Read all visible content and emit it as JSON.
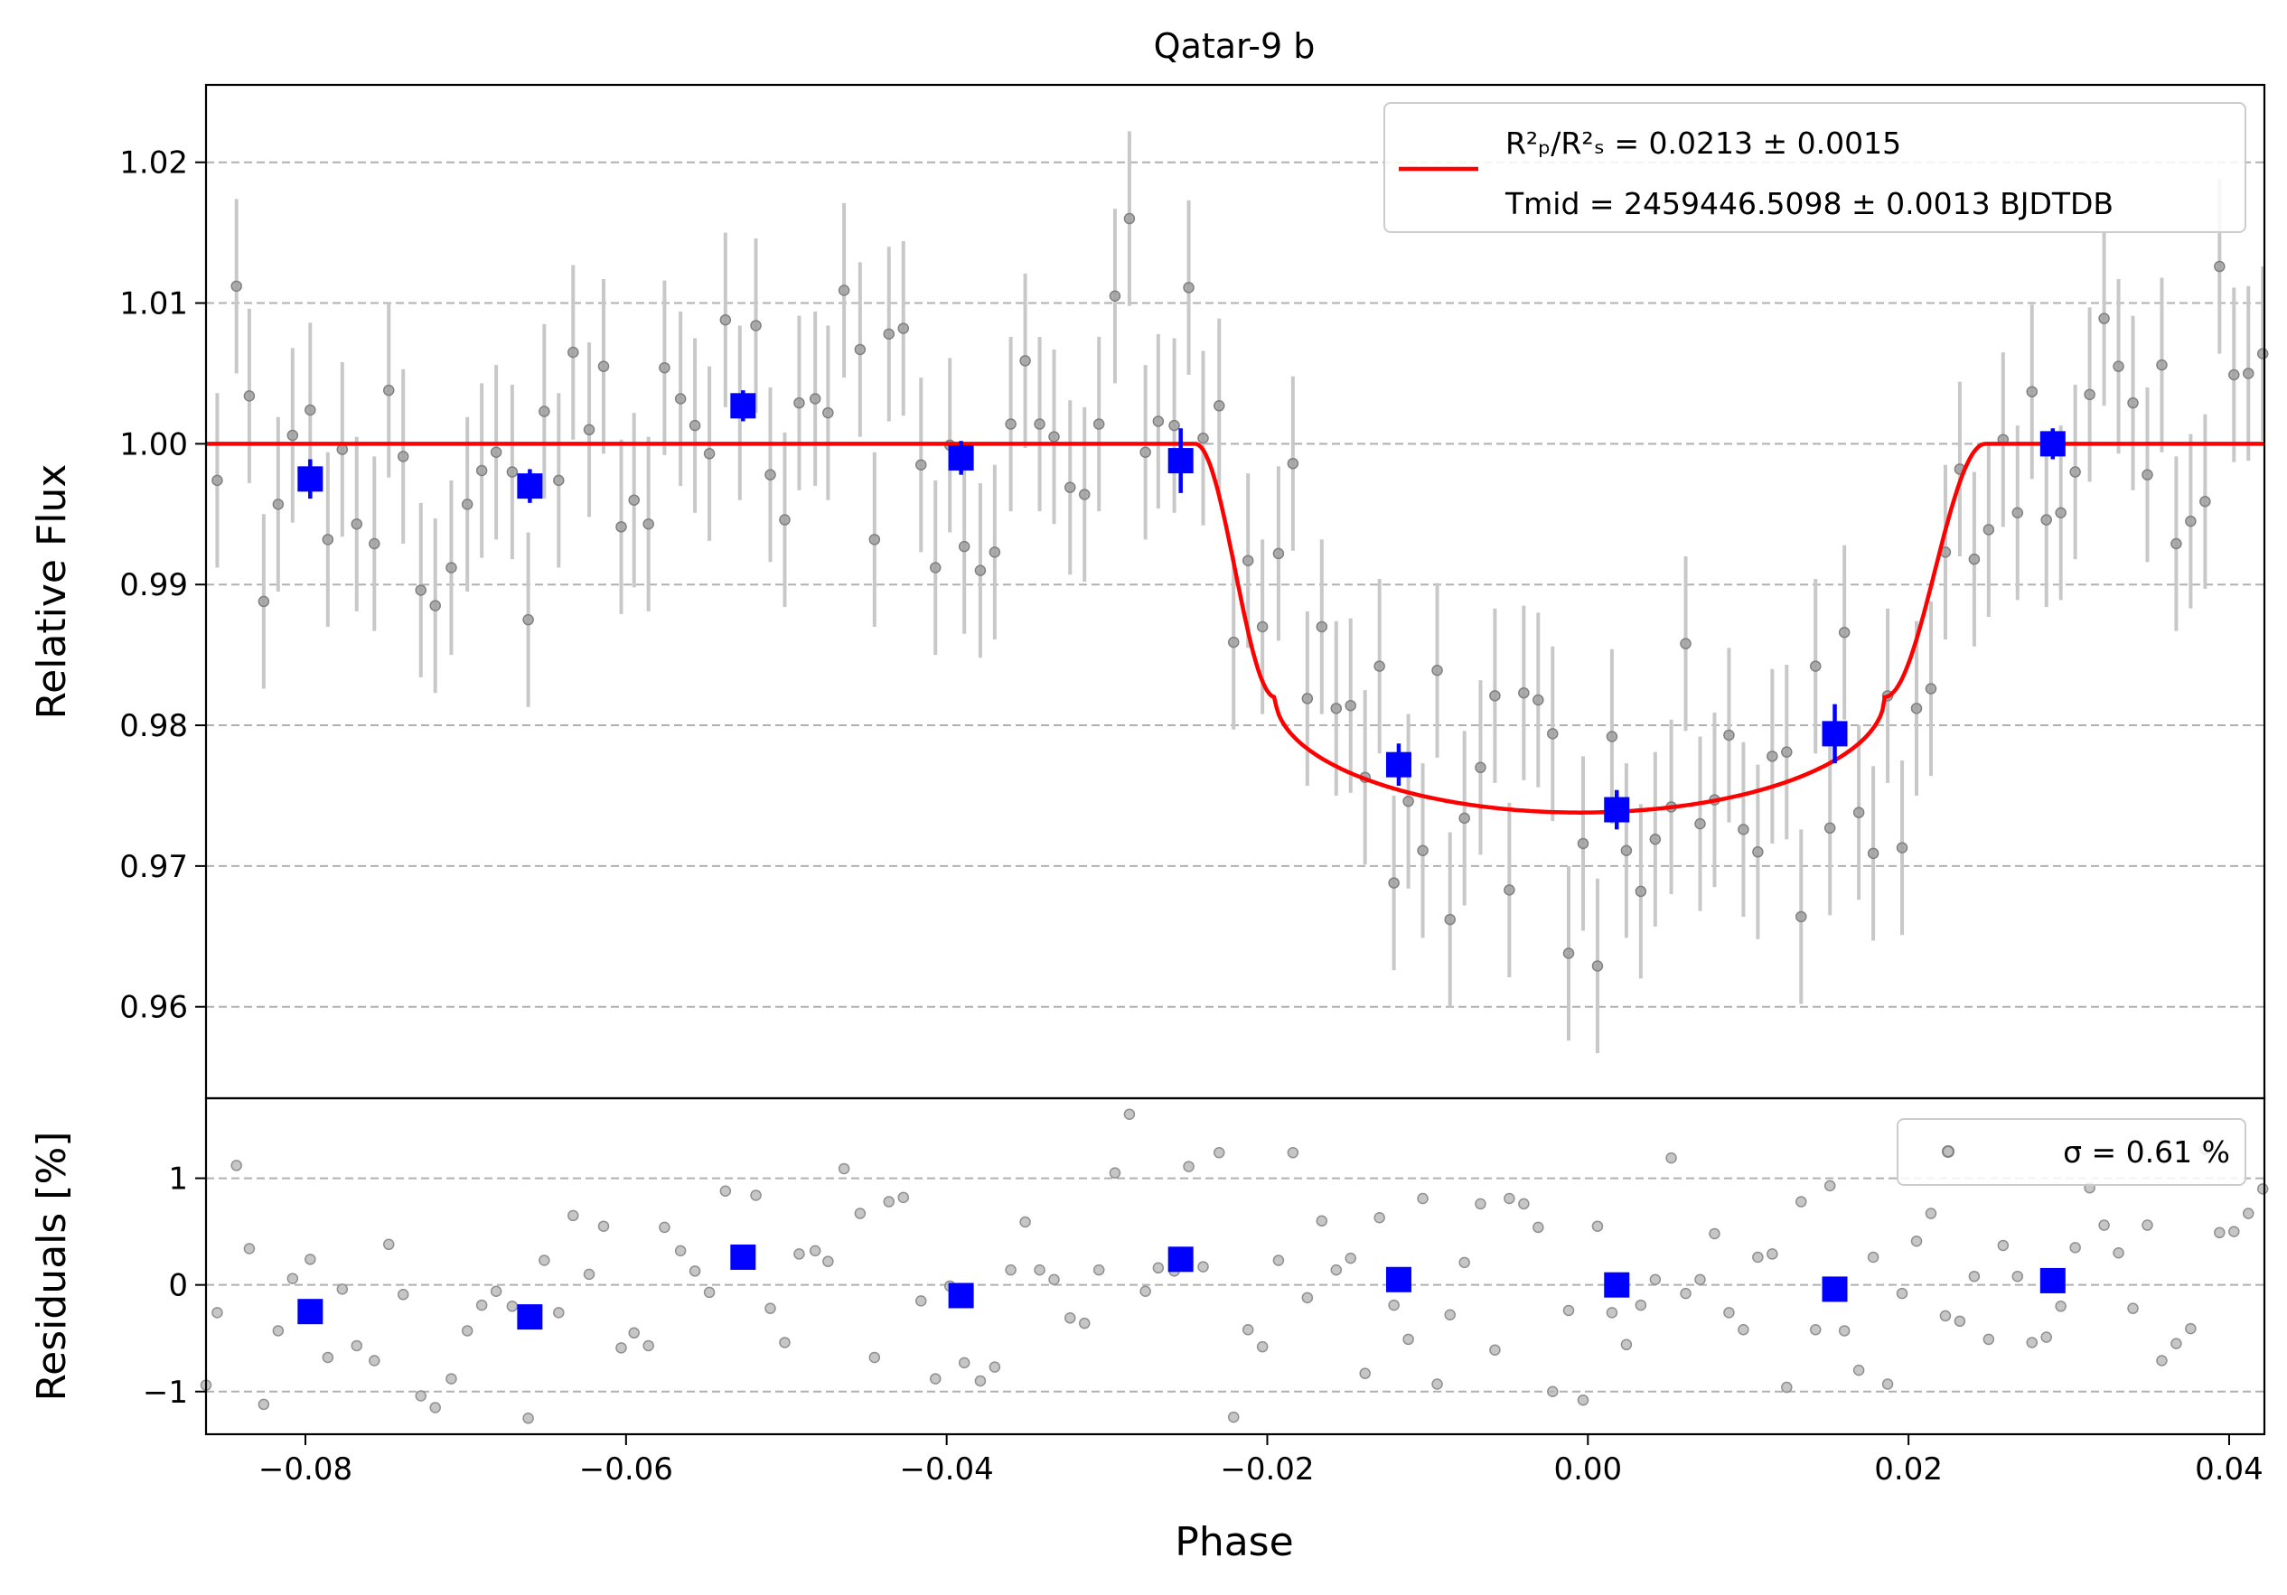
{
  "chart_data": [
    {
      "type": "scatter",
      "title": "Qatar-9 b",
      "ylabel": "Relative Flux",
      "xlim": [
        -0.0862,
        0.0422
      ],
      "ylim": [
        0.9535,
        1.0255
      ],
      "grid": "horizontal dashed",
      "yticks": [
        "0.96",
        "0.97",
        "0.98",
        "0.99",
        "1.00",
        "1.01",
        "1.02"
      ],
      "legend": {
        "placement": "top-right",
        "line_color": "#ff0000",
        "text_line1": "R²ₚ/R²ₛ = 0.0213 ± 0.0015",
        "text_line2": "Tmid = 2459446.5098 ± 0.0013 BJDTDB"
      },
      "colors": {
        "points": "#808080",
        "errorbars": "#c8c8c8",
        "binned": "#0000ff",
        "model": "#ff0000"
      },
      "model": {
        "baseline": 1.0,
        "depth_min": 0.9738,
        "t1": -0.0245,
        "t2": -0.0195,
        "t3": 0.0185,
        "t4": 0.0248
      },
      "error_half_width": 0.0062,
      "points": [
        [
          -0.0855,
          0.9974
        ],
        [
          -0.0843,
          1.0112
        ],
        [
          -0.0835,
          1.0034
        ],
        [
          -0.0826,
          0.9888
        ],
        [
          -0.0817,
          0.9957
        ],
        [
          -0.0808,
          1.0006
        ],
        [
          -0.0797,
          1.0024
        ],
        [
          -0.0786,
          0.9932
        ],
        [
          -0.0777,
          0.9996
        ],
        [
          -0.0768,
          0.9943
        ],
        [
          -0.0757,
          0.9929
        ],
        [
          -0.0748,
          1.0038
        ],
        [
          -0.0739,
          0.9991
        ],
        [
          -0.0728,
          0.9896
        ],
        [
          -0.0719,
          0.9885
        ],
        [
          -0.0709,
          0.9912
        ],
        [
          -0.0699,
          0.9957
        ],
        [
          -0.069,
          0.9981
        ],
        [
          -0.0681,
          0.9994
        ],
        [
          -0.0671,
          0.998
        ],
        [
          -0.0661,
          0.9875
        ],
        [
          -0.0651,
          1.0023
        ],
        [
          -0.0642,
          0.9974
        ],
        [
          -0.0633,
          1.0065
        ],
        [
          -0.0623,
          1.001
        ],
        [
          -0.0614,
          1.0055
        ],
        [
          -0.0603,
          0.9941
        ],
        [
          -0.0595,
          0.996
        ],
        [
          -0.0586,
          0.9943
        ],
        [
          -0.0576,
          1.0054
        ],
        [
          -0.0566,
          1.0032
        ],
        [
          -0.0557,
          1.0013
        ],
        [
          -0.0548,
          0.9993
        ],
        [
          -0.0538,
          1.0088
        ],
        [
          -0.0529,
          1.0022
        ],
        [
          -0.0519,
          1.0084
        ],
        [
          -0.051,
          0.9978
        ],
        [
          -0.0501,
          0.9946
        ],
        [
          -0.0492,
          1.0029
        ],
        [
          -0.0482,
          1.0032
        ],
        [
          -0.0474,
          1.0022
        ],
        [
          -0.0464,
          1.0109
        ],
        [
          -0.0454,
          1.0067
        ],
        [
          -0.0445,
          0.9932
        ],
        [
          -0.0436,
          1.0078
        ],
        [
          -0.0427,
          1.0082
        ],
        [
          -0.0416,
          0.9985
        ],
        [
          -0.0407,
          0.9912
        ],
        [
          -0.0398,
          0.9999
        ],
        [
          -0.0389,
          0.9927
        ],
        [
          -0.0379,
          0.991
        ],
        [
          -0.037,
          0.9923
        ],
        [
          -0.036,
          1.0014
        ],
        [
          -0.0351,
          1.0059
        ],
        [
          -0.0342,
          1.0014
        ],
        [
          -0.0333,
          1.0005
        ],
        [
          -0.0323,
          0.9969
        ],
        [
          -0.0314,
          0.9964
        ],
        [
          -0.0305,
          1.0014
        ],
        [
          -0.0295,
          1.0105
        ],
        [
          -0.0286,
          1.016
        ],
        [
          -0.0276,
          0.9994
        ],
        [
          -0.0268,
          1.0016
        ],
        [
          -0.0258,
          1.0013
        ],
        [
          -0.0249,
          1.0111
        ],
        [
          -0.024,
          1.0004
        ],
        [
          -0.023,
          1.0027
        ],
        [
          -0.0221,
          0.9859
        ],
        [
          -0.0212,
          0.9917
        ],
        [
          -0.0203,
          0.987
        ],
        [
          -0.0193,
          0.9922
        ],
        [
          -0.0184,
          0.9986
        ],
        [
          -0.0175,
          0.9819
        ],
        [
          -0.0166,
          0.987
        ],
        [
          -0.0157,
          0.9812
        ],
        [
          -0.0148,
          0.9814
        ],
        [
          -0.0139,
          0.9763
        ],
        [
          -0.013,
          0.9842
        ],
        [
          -0.0121,
          0.9688
        ],
        [
          -0.0112,
          0.9746
        ],
        [
          -0.0103,
          0.9711
        ],
        [
          -0.0094,
          0.9839
        ],
        [
          -0.0086,
          0.9662
        ],
        [
          -0.0077,
          0.9734
        ],
        [
          -0.0067,
          0.977
        ],
        [
          -0.0058,
          0.9821
        ],
        [
          -0.0049,
          0.9683
        ],
        [
          -0.004,
          0.9823
        ],
        [
          -0.0031,
          0.9818
        ],
        [
          -0.0022,
          0.9794
        ],
        [
          -0.0012,
          0.9638
        ],
        [
          -0.0003,
          0.9716
        ],
        [
          0.0006,
          0.9629
        ],
        [
          0.0015,
          0.9792
        ],
        [
          0.0024,
          0.9711
        ],
        [
          0.0033,
          0.9682
        ],
        [
          0.0042,
          0.9719
        ],
        [
          0.0052,
          0.9742
        ],
        [
          0.0061,
          0.9858
        ],
        [
          0.007,
          0.973
        ],
        [
          0.0079,
          0.9747
        ],
        [
          0.0088,
          0.9793
        ],
        [
          0.0097,
          0.9726
        ],
        [
          0.0106,
          0.971
        ],
        [
          0.0115,
          0.9778
        ],
        [
          0.0124,
          0.9781
        ],
        [
          0.0133,
          0.9664
        ],
        [
          0.0142,
          0.9842
        ],
        [
          0.0151,
          0.9727
        ],
        [
          0.016,
          0.9866
        ],
        [
          0.0169,
          0.9738
        ],
        [
          0.0178,
          0.9709
        ],
        [
          0.0187,
          0.9821
        ],
        [
          0.0196,
          0.9713
        ],
        [
          0.0205,
          0.9812
        ],
        [
          0.0214,
          0.9826
        ],
        [
          0.0223,
          0.9923
        ],
        [
          0.0232,
          0.9982
        ],
        [
          0.0241,
          0.9918
        ],
        [
          0.025,
          0.9939
        ],
        [
          0.0259,
          1.0003
        ],
        [
          0.0268,
          0.9951
        ],
        [
          0.0277,
          1.0037
        ],
        [
          0.0286,
          0.9946
        ],
        [
          0.0295,
          0.9951
        ],
        [
          0.0304,
          0.998
        ],
        [
          0.0313,
          1.0035
        ],
        [
          0.0322,
          1.0089
        ],
        [
          0.0331,
          1.0055
        ],
        [
          0.034,
          1.0029
        ],
        [
          0.0349,
          0.9978
        ],
        [
          0.0358,
          1.0056
        ],
        [
          0.0367,
          0.9929
        ],
        [
          0.0376,
          0.9945
        ],
        [
          0.0385,
          0.9959
        ],
        [
          0.0394,
          1.0126
        ],
        [
          0.0403,
          1.0049
        ],
        [
          0.0412,
          1.005
        ],
        [
          0.0421,
          1.0064
        ]
      ],
      "binned": [
        [
          -0.0797,
          0.9975,
          0.0014
        ],
        [
          -0.066,
          0.997,
          0.0012
        ],
        [
          -0.0527,
          1.0027,
          0.0011
        ],
        [
          -0.0391,
          0.999,
          0.0012
        ],
        [
          -0.0254,
          0.9988,
          0.0023
        ],
        [
          -0.0118,
          0.9772,
          0.0015
        ],
        [
          0.0018,
          0.974,
          0.0014
        ],
        [
          0.0154,
          0.9794,
          0.0021
        ],
        [
          0.029,
          1.0,
          0.0011
        ]
      ]
    },
    {
      "type": "scatter",
      "ylabel": "Residuals [%]",
      "xlabel": "Phase",
      "xlim": [
        -0.0862,
        0.0422
      ],
      "ylim": [
        -1.4,
        1.75
      ],
      "grid": "horizontal dashed",
      "yticks": [
        "−1",
        "0",
        "1"
      ],
      "xticks": [
        "−0.08",
        "−0.06",
        "−0.04",
        "−0.02",
        "0.00",
        "0.02",
        "0.04"
      ],
      "legend": {
        "placement": "top-right",
        "text": "σ = 0.61 %"
      },
      "points": [
        [
          -0.0862,
          -0.94
        ],
        [
          -0.0855,
          -0.26
        ],
        [
          -0.0843,
          1.12
        ],
        [
          -0.0835,
          0.34
        ],
        [
          -0.0826,
          -1.12
        ],
        [
          -0.0817,
          -0.43
        ],
        [
          -0.0808,
          0.06
        ],
        [
          -0.0797,
          0.24
        ],
        [
          -0.0786,
          -0.68
        ],
        [
          -0.0777,
          -0.04
        ],
        [
          -0.0768,
          -0.57
        ],
        [
          -0.0757,
          -0.71
        ],
        [
          -0.0748,
          0.38
        ],
        [
          -0.0739,
          -0.09
        ],
        [
          -0.0728,
          -1.04
        ],
        [
          -0.0719,
          -1.15
        ],
        [
          -0.0709,
          -0.88
        ],
        [
          -0.0699,
          -0.43
        ],
        [
          -0.069,
          -0.19
        ],
        [
          -0.0681,
          -0.06
        ],
        [
          -0.0671,
          -0.2
        ],
        [
          -0.0661,
          -1.25
        ],
        [
          -0.0651,
          0.23
        ],
        [
          -0.0642,
          -0.26
        ],
        [
          -0.0633,
          0.65
        ],
        [
          -0.0623,
          0.1
        ],
        [
          -0.0614,
          0.55
        ],
        [
          -0.0603,
          -0.59
        ],
        [
          -0.0595,
          -0.45
        ],
        [
          -0.0586,
          -0.57
        ],
        [
          -0.0576,
          0.54
        ],
        [
          -0.0566,
          0.32
        ],
        [
          -0.0557,
          0.13
        ],
        [
          -0.0548,
          -0.07
        ],
        [
          -0.0538,
          0.88
        ],
        [
          -0.0529,
          0.22
        ],
        [
          -0.0519,
          0.84
        ],
        [
          -0.051,
          -0.22
        ],
        [
          -0.0501,
          -0.54
        ],
        [
          -0.0492,
          0.29
        ],
        [
          -0.0482,
          0.32
        ],
        [
          -0.0474,
          0.22
        ],
        [
          -0.0464,
          1.09
        ],
        [
          -0.0454,
          0.67
        ],
        [
          -0.0445,
          -0.68
        ],
        [
          -0.0436,
          0.78
        ],
        [
          -0.0427,
          0.82
        ],
        [
          -0.0416,
          -0.15
        ],
        [
          -0.0407,
          -0.88
        ],
        [
          -0.0398,
          -0.01
        ],
        [
          -0.0389,
          -0.73
        ],
        [
          -0.0379,
          -0.9
        ],
        [
          -0.037,
          -0.77
        ],
        [
          -0.036,
          0.14
        ],
        [
          -0.0351,
          0.59
        ],
        [
          -0.0342,
          0.14
        ],
        [
          -0.0333,
          0.05
        ],
        [
          -0.0323,
          -0.31
        ],
        [
          -0.0314,
          -0.36
        ],
        [
          -0.0305,
          0.14
        ],
        [
          -0.0295,
          1.05
        ],
        [
          -0.0286,
          1.6
        ],
        [
          -0.0276,
          -0.06
        ],
        [
          -0.0268,
          0.16
        ],
        [
          -0.0258,
          0.13
        ],
        [
          -0.0249,
          1.11
        ],
        [
          -0.024,
          0.17
        ],
        [
          -0.023,
          1.24
        ],
        [
          -0.0221,
          -1.24
        ],
        [
          -0.0212,
          -0.42
        ],
        [
          -0.0203,
          -0.58
        ],
        [
          -0.0193,
          0.23
        ],
        [
          -0.0184,
          1.24
        ],
        [
          -0.0175,
          -0.12
        ],
        [
          -0.0166,
          0.6
        ],
        [
          -0.0157,
          0.14
        ],
        [
          -0.0148,
          0.25
        ],
        [
          -0.0139,
          -0.83
        ],
        [
          -0.013,
          0.63
        ],
        [
          -0.0121,
          -0.19
        ],
        [
          -0.0112,
          -0.51
        ],
        [
          -0.0103,
          0.81
        ],
        [
          -0.0094,
          -0.93
        ],
        [
          -0.0086,
          -0.28
        ],
        [
          -0.0077,
          0.21
        ],
        [
          -0.0067,
          0.76
        ],
        [
          -0.0058,
          -0.61
        ],
        [
          -0.0049,
          0.81
        ],
        [
          -0.004,
          0.76
        ],
        [
          -0.0031,
          0.54
        ],
        [
          -0.0022,
          -1.0
        ],
        [
          -0.0012,
          -0.24
        ],
        [
          -0.0003,
          -1.08
        ],
        [
          0.0006,
          0.55
        ],
        [
          0.0015,
          -0.26
        ],
        [
          0.0024,
          -0.56
        ],
        [
          0.0033,
          -0.19
        ],
        [
          0.0042,
          0.05
        ],
        [
          0.0052,
          1.19
        ],
        [
          0.0061,
          -0.08
        ],
        [
          0.007,
          0.05
        ],
        [
          0.0079,
          0.48
        ],
        [
          0.0088,
          -0.26
        ],
        [
          0.0097,
          -0.42
        ],
        [
          0.0106,
          0.26
        ],
        [
          0.0115,
          0.29
        ],
        [
          0.0124,
          -0.96
        ],
        [
          0.0133,
          0.78
        ],
        [
          0.0142,
          -0.42
        ],
        [
          0.0151,
          0.93
        ],
        [
          0.016,
          -0.43
        ],
        [
          0.0169,
          -0.8
        ],
        [
          0.0178,
          0.26
        ],
        [
          0.0187,
          -0.93
        ],
        [
          0.0196,
          -0.08
        ],
        [
          0.0205,
          0.41
        ],
        [
          0.0214,
          0.67
        ],
        [
          0.0223,
          -0.29
        ],
        [
          0.0232,
          -0.34
        ],
        [
          0.0241,
          0.08
        ],
        [
          0.025,
          -0.51
        ],
        [
          0.0259,
          0.37
        ],
        [
          0.0268,
          0.08
        ],
        [
          0.0277,
          -0.54
        ],
        [
          0.0286,
          -0.49
        ],
        [
          0.0295,
          -0.2
        ],
        [
          0.0304,
          0.35
        ],
        [
          0.0313,
          0.91
        ],
        [
          0.0322,
          0.56
        ],
        [
          0.0331,
          0.3
        ],
        [
          0.034,
          -0.22
        ],
        [
          0.0349,
          0.56
        ],
        [
          0.0358,
          -0.71
        ],
        [
          0.0367,
          -0.55
        ],
        [
          0.0376,
          -0.41
        ],
        [
          0.0385,
          1.27
        ],
        [
          0.0394,
          0.49
        ],
        [
          0.0403,
          0.5
        ],
        [
          0.0412,
          0.67
        ],
        [
          0.0421,
          0.9
        ]
      ],
      "binned": [
        [
          -0.0797,
          -0.25
        ],
        [
          -0.066,
          -0.3
        ],
        [
          -0.0527,
          0.26
        ],
        [
          -0.0391,
          -0.1
        ],
        [
          -0.0254,
          0.24
        ],
        [
          -0.0118,
          0.05
        ],
        [
          0.0018,
          0.0
        ],
        [
          0.0154,
          -0.04
        ],
        [
          0.029,
          0.04
        ]
      ]
    }
  ]
}
